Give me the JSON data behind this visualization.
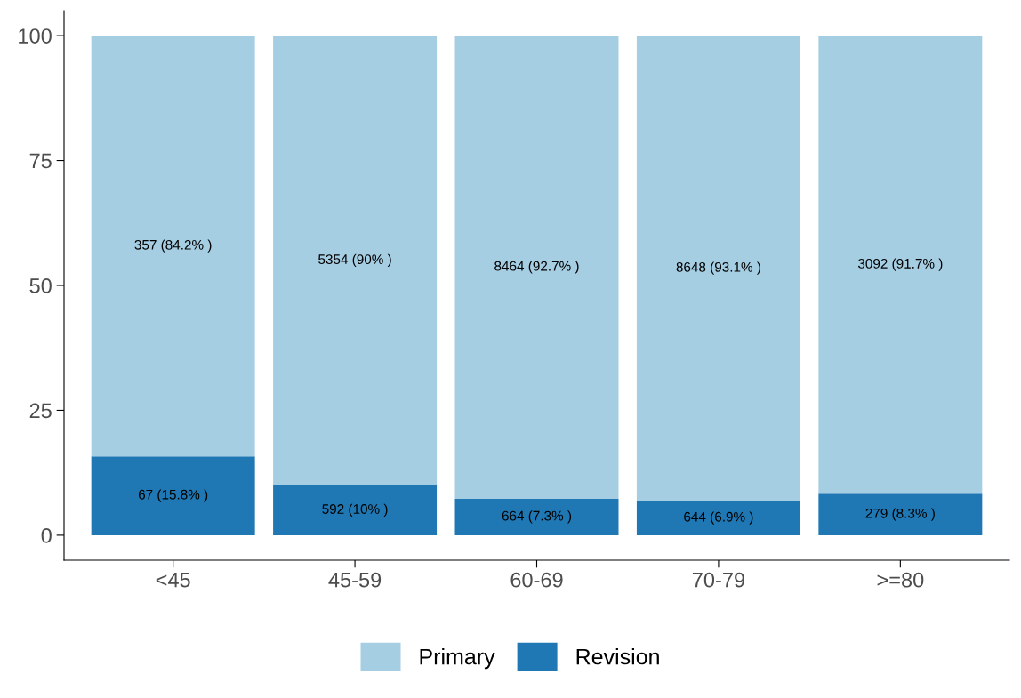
{
  "chart_data": {
    "type": "bar",
    "stacked": true,
    "categories": [
      "<45",
      "45-59",
      "60-69",
      "70-79",
      ">=80"
    ],
    "series": [
      {
        "name": "Revision",
        "color": "#1f78b4",
        "values": [
          15.8,
          10,
          7.3,
          6.9,
          8.3
        ],
        "value_labels": [
          "67 (15.8% )",
          "592 (10% )",
          "664 (7.3% )",
          "644 (6.9% )",
          "279 (8.3% )"
        ]
      },
      {
        "name": "Primary",
        "color": "#a6cee3",
        "values": [
          84.2,
          90,
          92.7,
          93.1,
          91.7
        ],
        "value_labels": [
          "357 (84.2% )",
          "5354 (90% )",
          "8464 (92.7% )",
          "8648 (93.1% )",
          "3092 (91.7% )"
        ]
      }
    ],
    "ylim": [
      -5,
      105
    ],
    "yticks": [
      0,
      25,
      50,
      75,
      100
    ],
    "grid": false,
    "legend": "bottom"
  }
}
